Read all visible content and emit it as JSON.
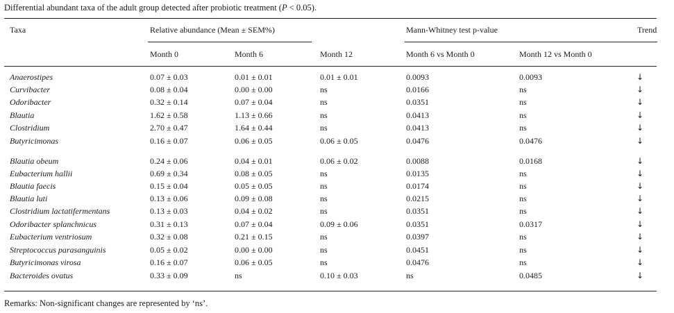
{
  "caption": {
    "text": "Differential abundant taxa of the adult group detected after probiotic treatment (",
    "p": "P",
    "tail": " < 0.05)."
  },
  "header": {
    "taxa": "Taxa",
    "relative": "Relative abundance (Mean ± SEM%)",
    "mann": "Mann-Whitney test p-value",
    "trend": "Trend",
    "month0": "Month 0",
    "month6": "Month 6",
    "month12": "Month 12",
    "m6vs0": "Month 6 vs Month 0",
    "m12vs0": "Month 12 vs Month 0"
  },
  "rows": [
    {
      "taxa": "Anaerostipes",
      "m0": "0.07 ± 0.03",
      "m6": "0.01 ± 0.01",
      "m12": "0.01 ± 0.01",
      "p6": "0.0093",
      "p12": "0.0093",
      "trend": "↓"
    },
    {
      "taxa": "Curvibacter",
      "m0": "0.08 ± 0.04",
      "m6": "0.00 ± 0.00",
      "m12": "ns",
      "p6": "0.0166",
      "p12": "ns",
      "trend": "↓"
    },
    {
      "taxa": "Odoribacter",
      "m0": "0.32 ± 0.14",
      "m6": "0.07 ± 0.04",
      "m12": "ns",
      "p6": "0.0351",
      "p12": "ns",
      "trend": "↓"
    },
    {
      "taxa": "Blautia",
      "m0": "1.62 ± 0.58",
      "m6": "1.13 ± 0.66",
      "m12": "ns",
      "p6": "0.0413",
      "p12": "ns",
      "trend": "↓"
    },
    {
      "taxa": "Clostridium",
      "m0": "2.70 ± 0.47",
      "m6": "1.64 ± 0.44",
      "m12": "ns",
      "p6": "0.0413",
      "p12": "ns",
      "trend": "↓"
    },
    {
      "taxa": "Butyricimonas",
      "m0": "0.16 ± 0.07",
      "m6": "0.06 ± 0.05",
      "m12": "0.06 ± 0.05",
      "p6": "0.0476",
      "p12": "0.0476",
      "trend": "↓"
    },
    {
      "taxa": "Blautia obeum",
      "m0": "0.24 ± 0.06",
      "m6": "0.04 ± 0.01",
      "m12": "0.06 ± 0.02",
      "p6": "0.0088",
      "p12": "0.0168",
      "trend": "↓"
    },
    {
      "taxa": "Eubacterium hallii",
      "m0": "0.69 ± 0.34",
      "m6": "0.08 ± 0.05",
      "m12": "ns",
      "p6": "0.0135",
      "p12": "ns",
      "trend": "↓"
    },
    {
      "taxa": "Blautia faecis",
      "m0": "0.15 ± 0.04",
      "m6": "0.05 ± 0.05",
      "m12": "ns",
      "p6": "0.0174",
      "p12": "ns",
      "trend": "↓"
    },
    {
      "taxa": "Blautia luti",
      "m0": "0.13 ± 0.06",
      "m6": "0.09 ± 0.08",
      "m12": "ns",
      "p6": "0.0215",
      "p12": "ns",
      "trend": "↓"
    },
    {
      "taxa": "Clostridium lactatifermentans",
      "m0": "0.13 ± 0.03",
      "m6": "0.04 ± 0.02",
      "m12": "ns",
      "p6": "0.0351",
      "p12": "ns",
      "trend": "↓"
    },
    {
      "taxa": "Odoribacter splanchnicus",
      "m0": "0.31 ± 0.13",
      "m6": "0.07 ± 0.04",
      "m12": "0.09 ± 0.06",
      "p6": "0.0351",
      "p12": "0.0317",
      "trend": "↓"
    },
    {
      "taxa": "Eubacterium ventriosum",
      "m0": "0.32 ± 0.08",
      "m6": "0.21 ± 0.15",
      "m12": "ns",
      "p6": "0.0397",
      "p12": "ns",
      "trend": "↓"
    },
    {
      "taxa": "Streptococcus parasanguinis",
      "m0": "0.05 ± 0.02",
      "m6": "0.00 ± 0.00",
      "m12": "ns",
      "p6": "0.0451",
      "p12": "ns",
      "trend": "↓"
    },
    {
      "taxa": "Butyricimonas virosa",
      "m0": "0.16 ± 0.07",
      "m6": "0.06 ± 0.05",
      "m12": "ns",
      "p6": "0.0476",
      "p12": "ns",
      "trend": "↓"
    },
    {
      "taxa": "Bacteroides ovatus",
      "m0": "0.33 ± 0.09",
      "m6": "ns",
      "m12": "0.10 ± 0.03",
      "p6": "ns",
      "p12": "0.0485",
      "trend": "↓"
    }
  ],
  "remarks": "Remarks: Non-significant changes are represented by ‘ns’."
}
